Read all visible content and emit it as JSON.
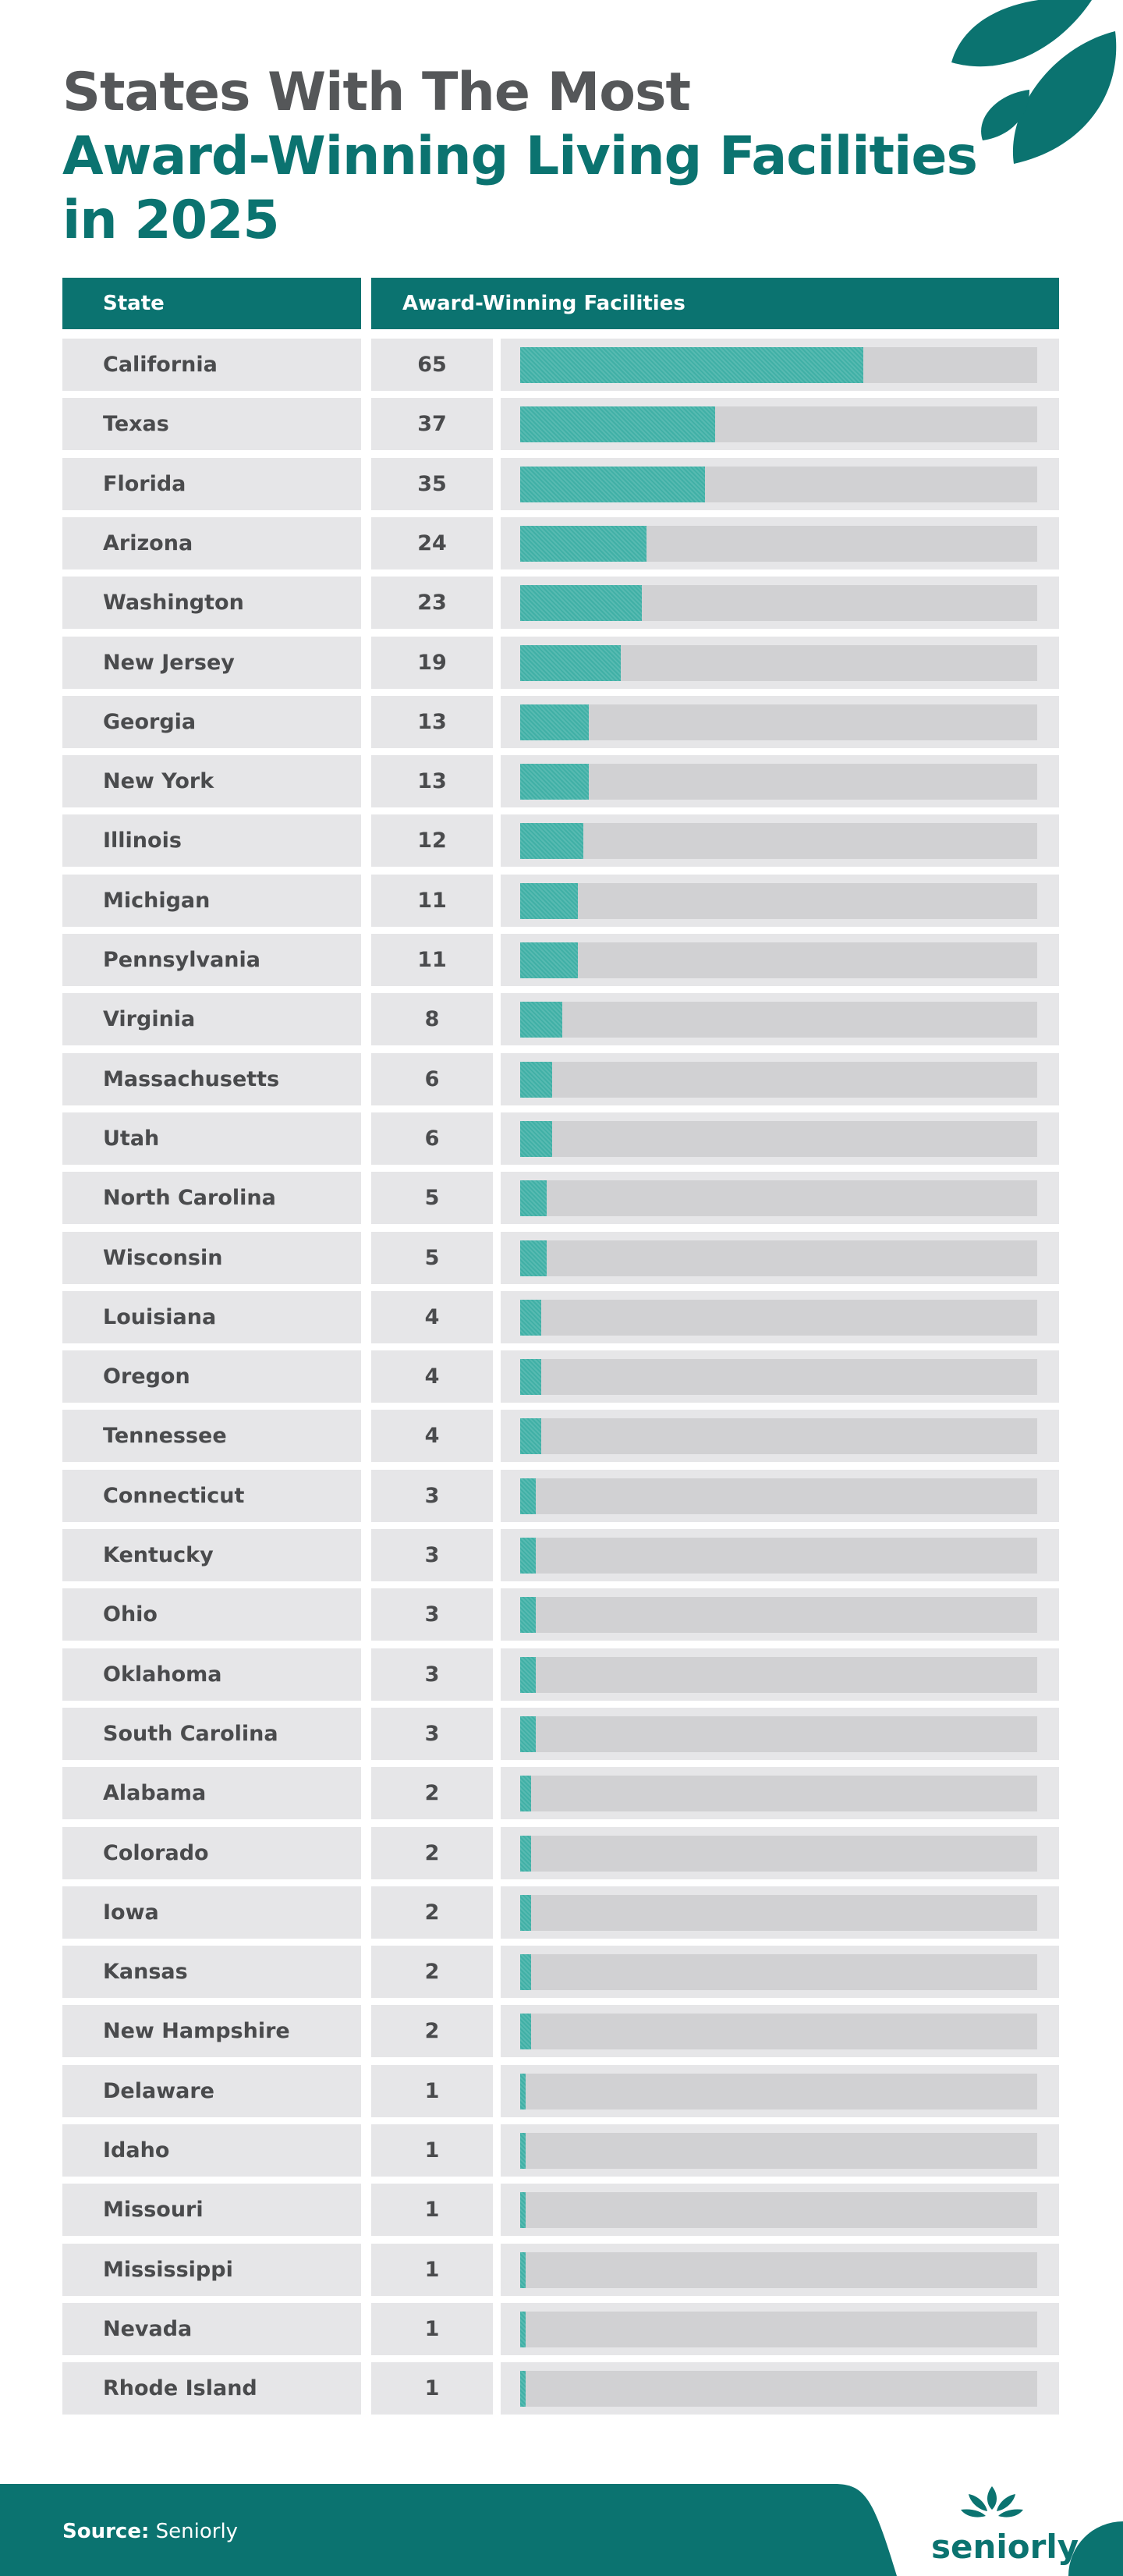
{
  "chart_data": {
    "type": "bar",
    "orientation": "horizontal",
    "title_lead": "States With The Most",
    "title_highlight": "Award-Winning Living Facilities in 2025",
    "column_headers": [
      "State",
      "Award-Winning Facilities"
    ],
    "categories": [
      "California",
      "Texas",
      "Florida",
      "Arizona",
      "Washington",
      "New Jersey",
      "Georgia",
      "New York",
      "Illinois",
      "Michigan",
      "Pennsylvania",
      "Virginia",
      "Massachusetts",
      "Utah",
      "North Carolina",
      "Wisconsin",
      "Louisiana",
      "Oregon",
      "Tennessee",
      "Connecticut",
      "Kentucky",
      "Ohio",
      "Oklahoma",
      "South Carolina",
      "Alabama",
      "Colorado",
      "Iowa",
      "Kansas",
      "New Hampshire",
      "Delaware",
      "Idaho",
      "Missouri",
      "Mississippi",
      "Nevada",
      "Rhode Island"
    ],
    "values": [
      65,
      37,
      35,
      24,
      23,
      19,
      13,
      13,
      12,
      11,
      11,
      8,
      6,
      6,
      5,
      5,
      4,
      4,
      4,
      3,
      3,
      3,
      3,
      3,
      2,
      2,
      2,
      2,
      2,
      1,
      1,
      1,
      1,
      1,
      1
    ],
    "color": "#40b0a6",
    "track_color": "#d1d1d3",
    "xlim": [
      0,
      98
    ],
    "source_label": "Source:",
    "source": "Seniorly",
    "brand": "seniorly"
  }
}
